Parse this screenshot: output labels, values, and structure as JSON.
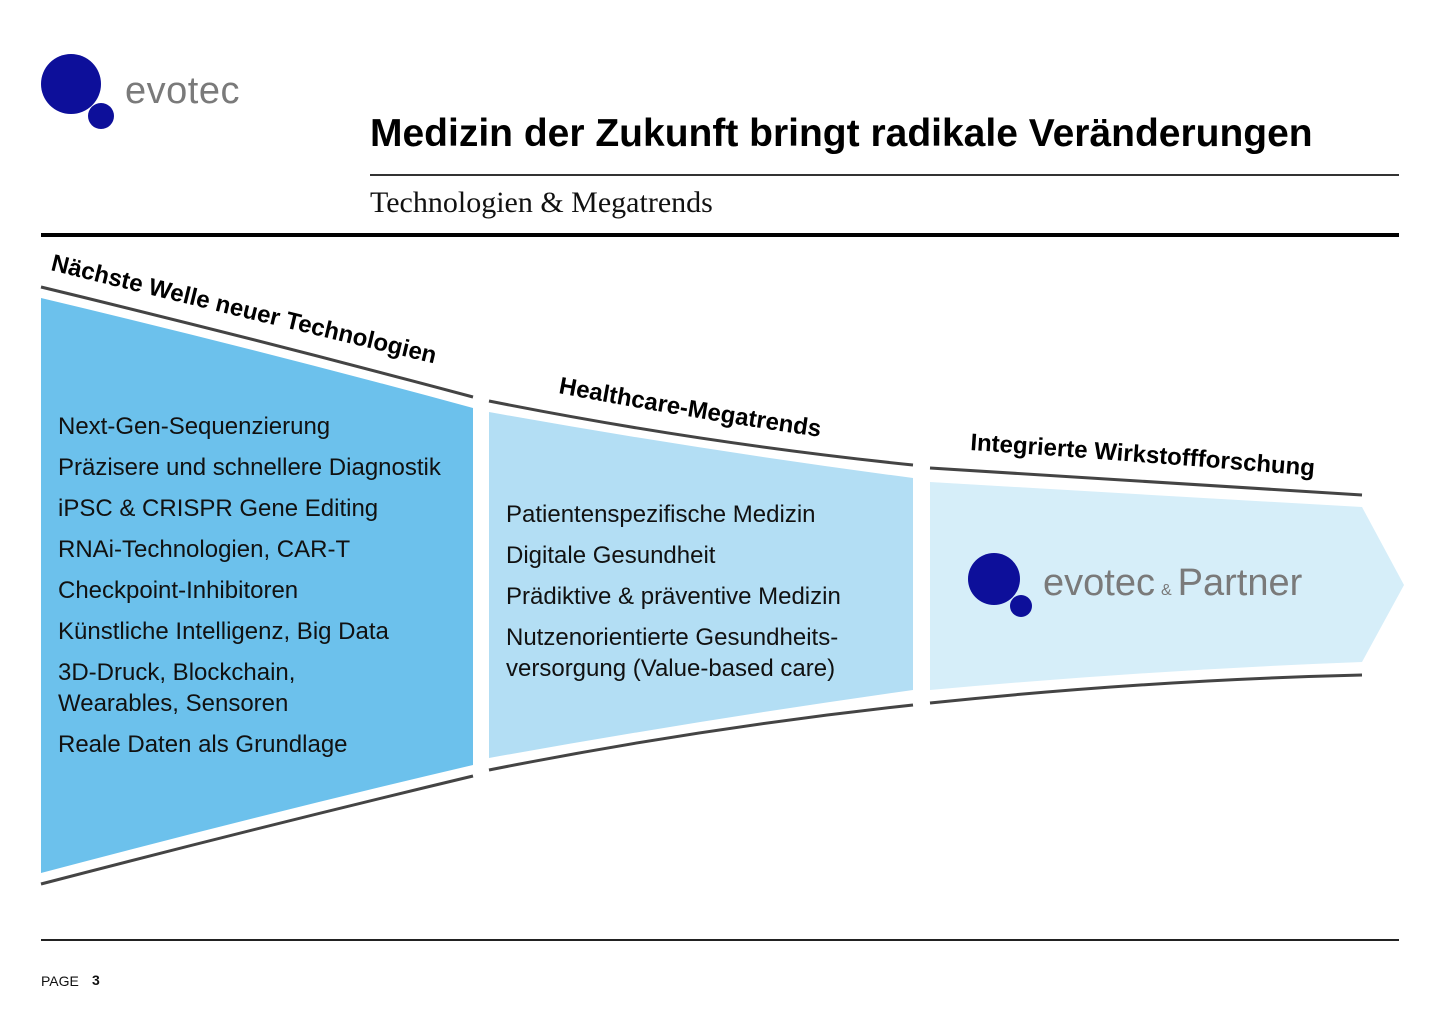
{
  "brand": {
    "logo_text": "evotec",
    "colors": {
      "dot_blue": "#0d0f9a",
      "dark_panel": "#6cc1ec",
      "mid_panel": "#b3def4",
      "light_panel": "#d6eef9",
      "logo_gray": "#7a7a7a"
    }
  },
  "header": {
    "title": "Medizin der Zukunft bringt radikale Veränderungen",
    "subtitle": "Technologien & Megatrends"
  },
  "funnel": {
    "stage1": {
      "heading": "Nächste Welle neuer Technologien",
      "items": [
        "Next-Gen-Sequenzierung",
        "Präzisere und schnellere Diagnostik",
        "iPSC & CRISPR Gene Editing",
        "RNAi-Technologien, CAR-T",
        "Checkpoint-Inhibitoren",
        "Künstliche Intelligenz, Big Data",
        "3D-Druck, Blockchain,\nWearables, Sensoren",
        "Reale Daten als Grundlage"
      ]
    },
    "stage2": {
      "heading": "Healthcare-Megatrends",
      "items": [
        "Patientenspezifische Medizin",
        "Digitale Gesundheit",
        "Prädiktive & präventive Medizin",
        "Nutzenorientierte Gesundheits-\nversorgung (Value-based care)"
      ]
    },
    "stage3": {
      "heading": "Integrierte Wirkstoffforschung",
      "partner_brand": "evotec",
      "partner_amp": "&",
      "partner_word": "Partner"
    }
  },
  "footer": {
    "page_label": "PAGE",
    "page_number": "3"
  }
}
